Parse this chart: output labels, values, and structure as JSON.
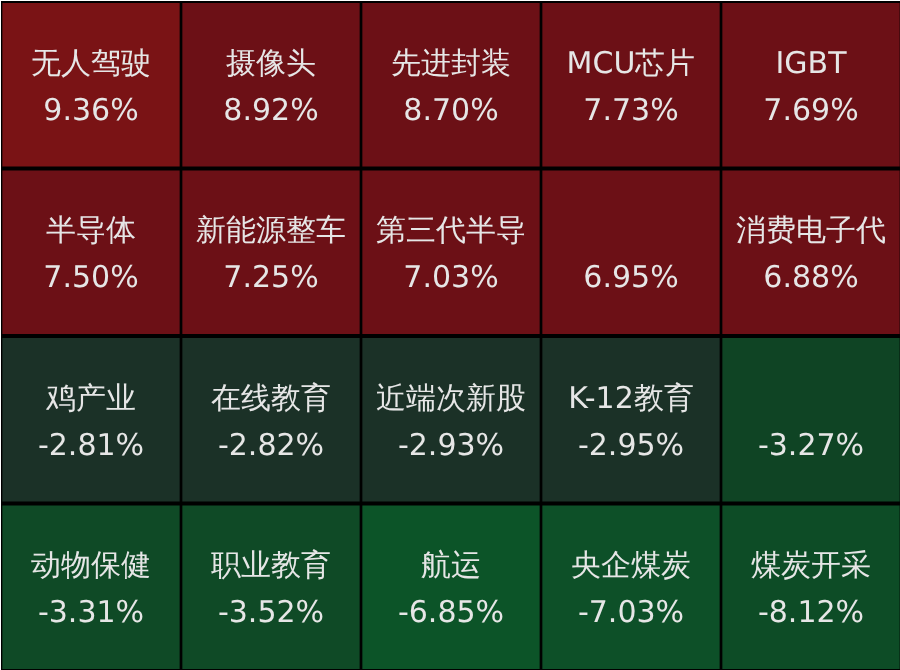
{
  "chart_data": {
    "type": "other",
    "categories": [
      "无人驾驶",
      "摄像头",
      "先进封装",
      "MCU芯片",
      "IGBT",
      "半导体",
      "新能源整车",
      "第三代半导",
      null,
      "消费电子代",
      "鸡产业",
      "在线教育",
      "近端次新股",
      "K-12教育",
      null,
      "动物保健",
      "职业教育",
      "航运",
      "央企煤炭",
      "煤炭开采"
    ],
    "values": [
      9.36,
      8.92,
      8.7,
      7.73,
      7.69,
      7.5,
      7.25,
      7.03,
      6.95,
      6.88,
      -2.81,
      -2.82,
      -2.93,
      -2.95,
      -3.27,
      -3.31,
      -3.52,
      -6.85,
      -7.03,
      -8.12
    ],
    "value_labels": [
      "9.36%",
      "8.92%",
      "8.70%",
      "7.73%",
      "7.69%",
      "7.50%",
      "7.25%",
      "7.03%",
      "6.95%",
      "6.88%",
      "-2.81%",
      "-2.82%",
      "-2.93%",
      "-2.95%",
      "-3.27%",
      "-3.31%",
      "-3.52%",
      "-6.85%",
      "-7.03%",
      "-8.12%"
    ],
    "colors": [
      "#7a1315",
      "#6c1016",
      "#6c1016",
      "#6c1016",
      "#6c1016",
      "#6c1016",
      "#6c1016",
      "#6c1016",
      "#6c1016",
      "#6c1016",
      "#1b3127",
      "#1b3127",
      "#1b3127",
      "#1b3127",
      "#0f4424",
      "#0f4a26",
      "#0f4a26",
      "#0c5428",
      "#0d5028",
      "#0d4c26"
    ],
    "data_labels": true
  }
}
